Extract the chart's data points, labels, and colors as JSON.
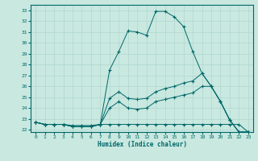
{
  "xlabel": "Humidex (Indice chaleur)",
  "ylabel": "",
  "bg_color": "#c8e8e0",
  "grid_color": "#b0d8d0",
  "line_color": "#006868",
  "xlim": [
    -0.5,
    23.5
  ],
  "ylim": [
    21.8,
    33.5
  ],
  "xticks": [
    0,
    1,
    2,
    3,
    4,
    5,
    6,
    7,
    8,
    9,
    10,
    11,
    12,
    13,
    14,
    15,
    16,
    17,
    18,
    19,
    20,
    21,
    22,
    23
  ],
  "yticks": [
    22,
    23,
    24,
    25,
    26,
    27,
    28,
    29,
    30,
    31,
    32,
    33
  ],
  "x_series": [
    0,
    1,
    2,
    3,
    4,
    5,
    6,
    7,
    8,
    9,
    10,
    11,
    12,
    13,
    14,
    15,
    16,
    17,
    18,
    19,
    20,
    21,
    22,
    23
  ],
  "series": [
    [
      22.7,
      22.5,
      22.5,
      22.5,
      22.4,
      22.4,
      22.4,
      22.5,
      27.5,
      29.2,
      31.1,
      31.0,
      30.7,
      32.9,
      32.9,
      32.4,
      31.5,
      29.2,
      27.2,
      26.0,
      24.6,
      22.9,
      21.8,
      21.8
    ],
    [
      22.7,
      22.5,
      22.5,
      22.5,
      22.3,
      22.3,
      22.3,
      22.5,
      24.9,
      25.5,
      24.9,
      24.8,
      24.9,
      25.5,
      25.8,
      26.0,
      26.3,
      26.5,
      27.2,
      26.0,
      24.6,
      22.9,
      21.8,
      21.8
    ],
    [
      22.7,
      22.5,
      22.5,
      22.5,
      22.3,
      22.3,
      22.3,
      22.5,
      24.0,
      24.6,
      24.0,
      23.9,
      24.0,
      24.6,
      24.8,
      25.0,
      25.2,
      25.4,
      26.0,
      26.0,
      24.6,
      22.9,
      21.8,
      21.8
    ],
    [
      22.7,
      22.5,
      22.5,
      22.5,
      22.3,
      22.3,
      22.3,
      22.5,
      22.5,
      22.5,
      22.5,
      22.5,
      22.5,
      22.5,
      22.5,
      22.5,
      22.5,
      22.5,
      22.5,
      22.5,
      22.5,
      22.5,
      22.5,
      21.8
    ]
  ]
}
